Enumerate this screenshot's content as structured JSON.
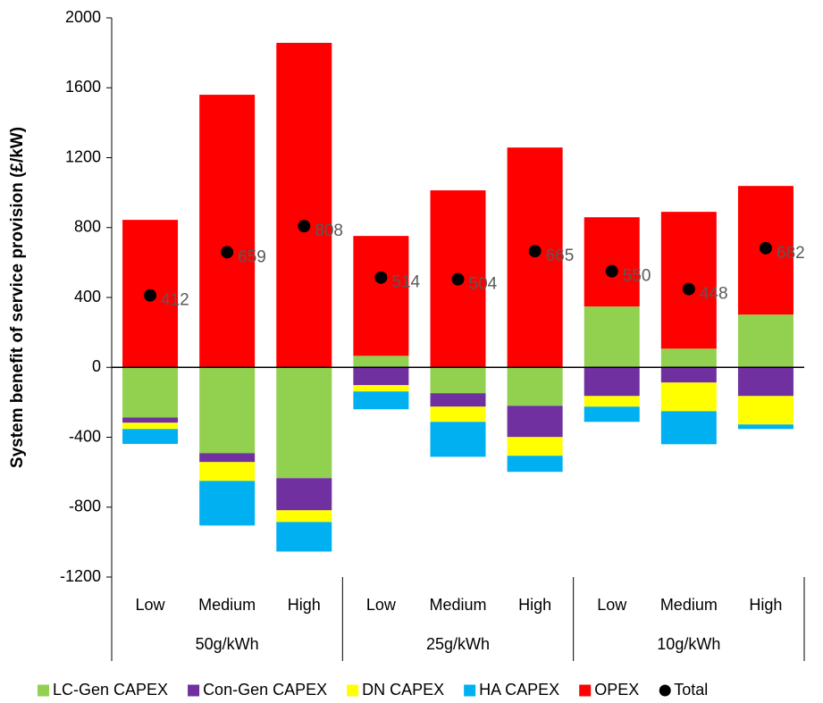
{
  "chart_data": {
    "type": "bar",
    "stacked": true,
    "y_label": "System benefit of service provision (£/kW)",
    "categories": [
      "Low",
      "Medium",
      "High",
      "Low",
      "Medium",
      "High",
      "Low",
      "Medium",
      "High"
    ],
    "groups": [
      "50g/kWh",
      "25g/kWh",
      "10g/kWh"
    ],
    "series": [
      {
        "name": "LC-Gen CAPEX",
        "color": "#92d050",
        "values": [
          -287,
          -491,
          -634,
          66,
          -148,
          -220,
          348,
          107,
          302
        ]
      },
      {
        "name": "Con-Gen CAPEX",
        "color": "#7030a0",
        "values": [
          -30,
          -51,
          -184,
          -102,
          -77,
          -179,
          -164,
          -87,
          -164
        ]
      },
      {
        "name": "DN CAPEX",
        "color": "#ffff00",
        "values": [
          -36,
          -108,
          -67,
          -36,
          -87,
          -107,
          -61,
          -164,
          -163
        ]
      },
      {
        "name": "HA CAPEX",
        "color": "#00b0f0",
        "values": [
          -85,
          -255,
          -169,
          -102,
          -200,
          -92,
          -87,
          -189,
          -26
        ]
      },
      {
        "name": "OPEX",
        "color": "#ff0000",
        "values": [
          844,
          1560,
          1857,
          686,
          1013,
          1258,
          511,
          783,
          736
        ]
      },
      {
        "name": "Total",
        "color": "#000000",
        "mark": "dot",
        "values": [
          412,
          659,
          808,
          514,
          504,
          665,
          550,
          448,
          682
        ]
      }
    ],
    "ylim": [
      -1200,
      2000
    ],
    "yticks": [
      -1200,
      -800,
      -400,
      0,
      400,
      800,
      1200,
      1600,
      2000
    ]
  }
}
